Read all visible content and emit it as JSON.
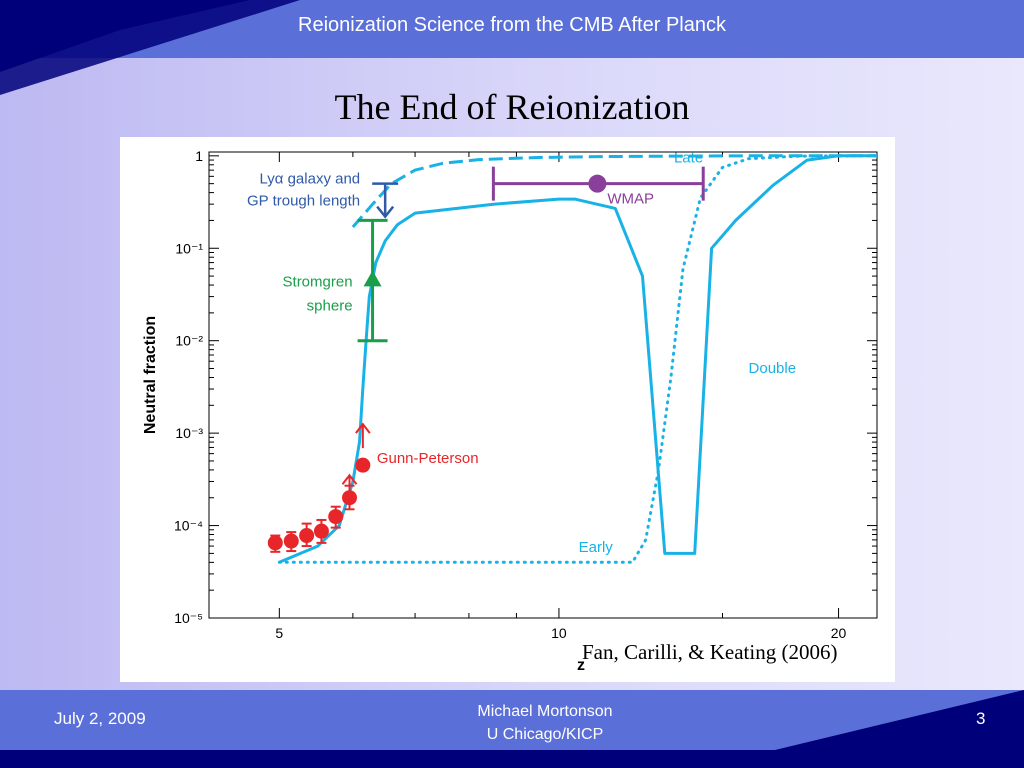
{
  "header": {
    "title": "Reionization Science from the CMB After Planck"
  },
  "slide": {
    "title": "The End of Reionization"
  },
  "citation": "Fan, Carilli, & Keating (2006)",
  "footer": {
    "date": "July 2, 2009",
    "author_line1": "Michael Mortonson",
    "author_line2": "U Chicago/KICP",
    "page": "3"
  },
  "colors": {
    "cyan": "#19b2e6",
    "red": "#e8262a",
    "green": "#1a9e4a",
    "blue": "#2f5aa8",
    "purple": "#8a3f9a",
    "header_bar": "#5b6fd8",
    "dark_bar": "#00007a"
  },
  "chart_data": {
    "type": "line",
    "xlabel": "z",
    "ylabel": "Neutral fraction",
    "x_scale": "log",
    "y_scale": "log",
    "xlim": [
      4.2,
      22
    ],
    "ylim": [
      1e-05,
      1.1
    ],
    "x_ticks": [
      5,
      10,
      20
    ],
    "y_ticks": [
      {
        "value": 1,
        "label": "1"
      },
      {
        "value": 0.1,
        "label": "10⁻¹"
      },
      {
        "value": 0.01,
        "label": "10⁻²"
      },
      {
        "value": 0.001,
        "label": "10⁻³"
      },
      {
        "value": 0.0001,
        "label": "10⁻⁴"
      },
      {
        "value": 1e-05,
        "label": "10⁻⁵"
      }
    ],
    "series": [
      {
        "name": "Late",
        "style": "dashed",
        "x": [
          6.0,
          6.3,
          6.6,
          7.0,
          7.5,
          8.2,
          9.5,
          11,
          13,
          16,
          22
        ],
        "y": [
          0.17,
          0.3,
          0.5,
          0.7,
          0.83,
          0.91,
          0.96,
          0.98,
          0.99,
          1.0,
          1.0
        ]
      },
      {
        "name": "Early",
        "style": "dotted",
        "x": [
          5.0,
          7,
          9,
          11,
          12.0,
          12.4,
          12.8,
          13.2,
          13.6,
          14.2,
          15,
          16,
          18,
          22
        ],
        "y": [
          4e-05,
          4e-05,
          4e-05,
          4e-05,
          4e-05,
          7e-05,
          0.0004,
          0.004,
          0.06,
          0.35,
          0.75,
          0.93,
          0.99,
          1.0
        ]
      },
      {
        "name": "Double",
        "style": "solid",
        "x": [
          5.0,
          5.5,
          5.8,
          6.0,
          6.1,
          6.15,
          6.2,
          6.25,
          6.35,
          6.5,
          6.7,
          7.0,
          8.5,
          10,
          10.4,
          11.5,
          12.3,
          13.0,
          14.0,
          14.6,
          15.5,
          17,
          18.5,
          20,
          22
        ],
        "y": [
          4e-05,
          6e-05,
          0.0001,
          0.0003,
          0.0008,
          0.003,
          0.01,
          0.03,
          0.07,
          0.12,
          0.18,
          0.24,
          0.3,
          0.34,
          0.34,
          0.27,
          0.05,
          5e-05,
          5e-05,
          0.1,
          0.2,
          0.48,
          0.9,
          1.0,
          1.0
        ]
      }
    ],
    "gunn_peterson": {
      "label": "Gunn-Peterson",
      "points": [
        {
          "x": 4.95,
          "y": 6.5e-05,
          "ylo": 5.2e-05,
          "yhi": 7.8e-05
        },
        {
          "x": 5.15,
          "y": 6.8e-05,
          "ylo": 5.3e-05,
          "yhi": 8.5e-05
        },
        {
          "x": 5.35,
          "y": 7.8e-05,
          "ylo": 6e-05,
          "yhi": 0.000105
        },
        {
          "x": 5.55,
          "y": 8.7e-05,
          "ylo": 6.5e-05,
          "yhi": 0.000115
        },
        {
          "x": 5.75,
          "y": 0.000125,
          "ylo": 9.5e-05,
          "yhi": 0.00016
        },
        {
          "x": 5.95,
          "y": 0.0002,
          "ylo": 0.00015,
          "yhi": 0.00027
        },
        {
          "x": 6.15,
          "y": 0.00045
        }
      ],
      "lower_limit_arrows": [
        {
          "x": 5.95,
          "y": 0.00035
        },
        {
          "x": 6.15,
          "y": 0.00125
        }
      ]
    },
    "lya_galaxy": {
      "label_line1": "Lyα galaxy and",
      "label_line2": "GP trough length",
      "x": 6.5,
      "y_top": 0.5,
      "y_arrow": 0.22
    },
    "stromgren": {
      "label_line1": "Stromgren",
      "label_line2": "sphere",
      "x": 6.3,
      "y": 0.045,
      "ylo": 0.01,
      "yhi": 0.2
    },
    "wmap": {
      "label": "WMAP",
      "x": 11,
      "xlo": 8.5,
      "xhi": 14.3,
      "y": 0.5
    },
    "annotations": [
      {
        "text": "Late",
        "x": 13.3,
        "y": 0.85
      },
      {
        "text": "Double",
        "x": 16,
        "y": 0.0045
      },
      {
        "text": "Early",
        "x": 10.5,
        "y": 5.2e-05
      }
    ]
  }
}
